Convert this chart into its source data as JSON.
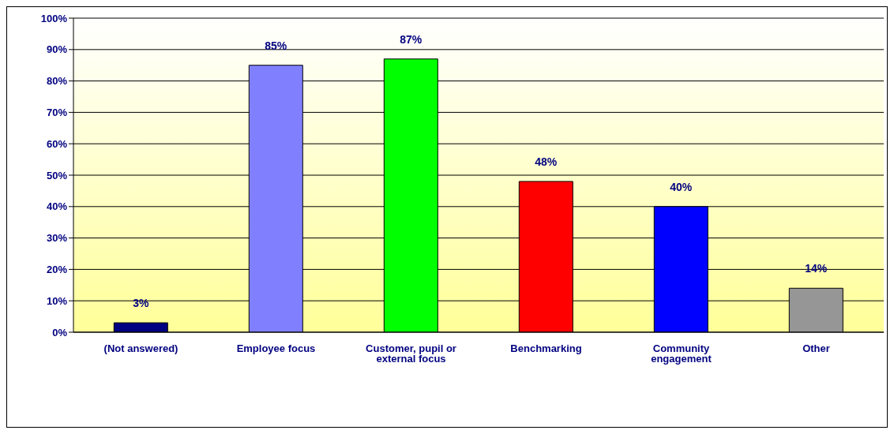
{
  "chart_data": {
    "type": "bar",
    "categories": [
      "(Not answered)",
      "Employee focus",
      "Customer, pupil or external focus",
      "Benchmarking",
      "Community engagement",
      "Other"
    ],
    "values": [
      3,
      85,
      87,
      48,
      40,
      14
    ],
    "colors": [
      "#000080",
      "#8080ff",
      "#00ff00",
      "#ff0000",
      "#0000ff",
      "#969696"
    ],
    "ylim": [
      0,
      100
    ],
    "yticks": [
      {
        "value": 0,
        "label": "0%"
      },
      {
        "value": 10,
        "label": "10%"
      },
      {
        "value": 20,
        "label": "20%"
      },
      {
        "value": 30,
        "label": "30%"
      },
      {
        "value": 40,
        "label": "40%"
      },
      {
        "value": 50,
        "label": "50%"
      },
      {
        "value": 60,
        "label": "60%"
      },
      {
        "value": 70,
        "label": "70%"
      },
      {
        "value": 80,
        "label": "80%"
      },
      {
        "value": 90,
        "label": "90%"
      },
      {
        "value": 100,
        "label": "100%"
      }
    ],
    "value_labels": [
      "3%",
      "85%",
      "87%",
      "48%",
      "40%",
      "14%"
    ],
    "grid": "y"
  }
}
